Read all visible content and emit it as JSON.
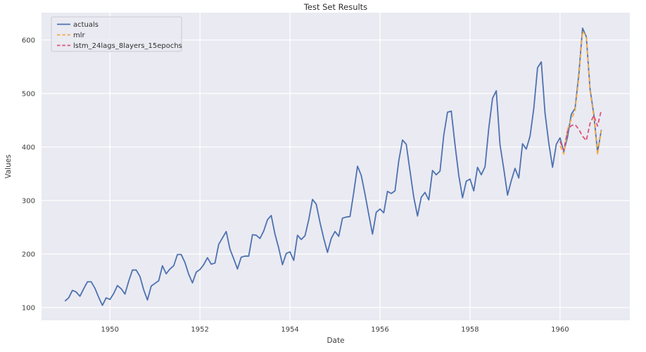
{
  "figure": {
    "background": "#ffffff",
    "axes_background": "#eaeaf2",
    "gridline_color": "#ffffff",
    "text_color": "#3d3d3d",
    "title_color": "#2f2f2f"
  },
  "chart_data": {
    "type": "line",
    "title": "Test Set Results",
    "xlabel": "Date",
    "ylabel": "Values",
    "grid": true,
    "legend_position": "upper left",
    "x_ticks": [
      1950,
      1952,
      1954,
      1956,
      1958,
      1960
    ],
    "y_ticks": [
      100,
      200,
      300,
      400,
      500,
      600
    ],
    "xlim": [
      1948.48,
      1961.55
    ],
    "ylim": [
      76,
      651
    ],
    "x_unit": "year",
    "sampling": "monthly",
    "series": [
      {
        "name": "actuals",
        "color": "#4C72B0",
        "style": "solid",
        "x_start": 1949.0,
        "values": [
          112,
          118,
          132,
          129,
          121,
          135,
          148,
          148,
          136,
          119,
          104,
          118,
          115,
          126,
          141,
          135,
          125,
          149,
          170,
          170,
          158,
          133,
          114,
          140,
          145,
          150,
          178,
          163,
          172,
          178,
          199,
          199,
          184,
          162,
          146,
          166,
          171,
          180,
          193,
          181,
          183,
          218,
          230,
          242,
          209,
          191,
          172,
          194,
          196,
          196,
          236,
          235,
          229,
          243,
          264,
          272,
          237,
          211,
          180,
          201,
          204,
          188,
          235,
          227,
          234,
          264,
          302,
          293,
          259,
          229,
          203,
          229,
          242,
          233,
          267,
          269,
          270,
          315,
          364,
          347,
          312,
          274,
          237,
          278,
          284,
          277,
          317,
          313,
          318,
          374,
          413,
          405,
          355,
          306,
          271,
          306,
          315,
          301,
          356,
          348,
          355,
          422,
          465,
          467,
          404,
          347,
          305,
          336,
          340,
          318,
          362,
          348,
          363,
          435,
          491,
          505,
          404,
          359,
          310,
          337,
          360,
          342,
          406,
          396,
          420,
          472,
          548,
          559,
          463,
          407,
          362,
          405,
          417,
          391,
          419,
          461,
          472,
          535,
          622,
          606,
          508,
          461,
          390,
          432
        ]
      },
      {
        "name": "mlr",
        "color": "#F2AC45",
        "style": "dashed",
        "x_start": 1960.0,
        "values": [
          402,
          387,
          433,
          452,
          468,
          528,
          616,
          607,
          504,
          457,
          385,
          431
        ]
      },
      {
        "name": "lstm_24lags_8layers_15epochs",
        "color": "#DD537A",
        "style": "dashed",
        "x_start": 1960.0,
        "values": [
          410,
          394,
          430,
          440,
          442,
          433,
          420,
          412,
          444,
          459,
          439,
          469
        ]
      }
    ]
  }
}
